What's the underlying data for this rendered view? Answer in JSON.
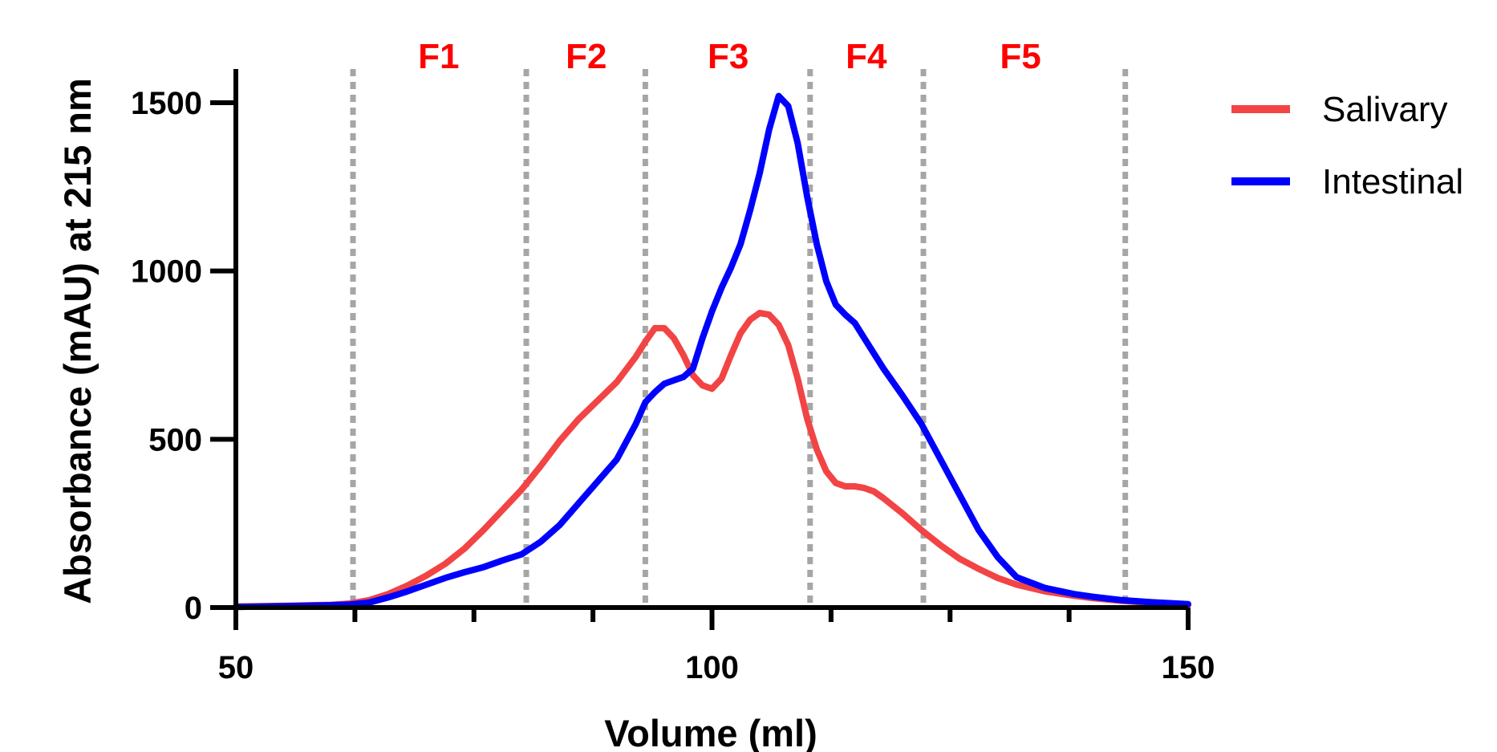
{
  "chart_data": {
    "type": "line",
    "title": "",
    "xlabel": "Volume (ml)",
    "ylabel": "Absorbance (mAU) at 215 nm",
    "xlim": [
      50,
      150
    ],
    "ylim": [
      0,
      1600
    ],
    "x_ticks": [
      50,
      100,
      150
    ],
    "x_tick_labels": [
      "50",
      "100",
      "150"
    ],
    "y_ticks": [
      0,
      500,
      1000,
      1500
    ],
    "y_tick_labels": [
      "0",
      "500",
      "1000",
      "1500"
    ],
    "legend_position": "right",
    "fraction_boundaries": [
      62.3,
      80.5,
      93,
      110.3,
      122.2,
      143.4
    ],
    "fractions": [
      {
        "label": "F1",
        "x": 71.3
      },
      {
        "label": "F2",
        "x": 86.8
      },
      {
        "label": "F3",
        "x": 101.7
      },
      {
        "label": "F4",
        "x": 116.2
      },
      {
        "label": "F5",
        "x": 132.4
      }
    ],
    "fraction_color": "#ff0000",
    "boundary_color": "#a6a6a6",
    "series": [
      {
        "name": "Salivary",
        "color": "#f24444",
        "x": [
          50,
          55,
          60,
          62,
          64,
          66,
          68,
          70,
          72,
          74,
          76,
          78,
          80,
          82,
          84,
          86,
          88,
          90,
          92,
          93,
          94,
          95,
          96,
          97,
          98,
          99,
          100,
          101,
          102,
          103,
          104,
          105,
          106,
          107,
          108,
          109,
          110,
          111,
          112,
          113,
          114,
          115,
          116,
          117,
          118,
          120,
          122,
          124,
          126,
          128,
          130,
          132,
          135,
          138,
          140,
          143,
          146,
          150
        ],
        "y": [
          3,
          5,
          8,
          12,
          22,
          40,
          65,
          95,
          130,
          175,
          230,
          290,
          350,
          420,
          495,
          560,
          615,
          670,
          745,
          790,
          830,
          830,
          800,
          750,
          690,
          660,
          650,
          680,
          750,
          815,
          855,
          875,
          870,
          840,
          780,
          680,
          560,
          470,
          405,
          370,
          360,
          360,
          355,
          345,
          325,
          280,
          230,
          185,
          145,
          115,
          88,
          68,
          48,
          35,
          28,
          20,
          14,
          8
        ]
      },
      {
        "name": "Intestinal",
        "color": "#0000ff",
        "x": [
          50,
          55,
          60,
          62,
          64,
          66,
          68,
          70,
          72,
          74,
          76,
          78,
          80,
          82,
          84,
          86,
          88,
          90,
          92,
          93,
          94,
          95,
          96,
          97,
          98,
          99,
          100,
          101,
          102,
          103,
          104,
          105,
          106,
          107,
          108,
          109,
          110,
          111,
          112,
          113,
          114,
          115,
          116,
          117,
          118,
          120,
          122,
          124,
          126,
          128,
          130,
          132,
          135,
          138,
          140,
          143,
          146,
          150
        ],
        "y": [
          2,
          4,
          7,
          9,
          15,
          30,
          48,
          68,
          88,
          105,
          120,
          140,
          158,
          195,
          245,
          310,
          375,
          440,
          545,
          610,
          640,
          665,
          675,
          685,
          710,
          800,
          880,
          950,
          1010,
          1080,
          1180,
          1290,
          1420,
          1520,
          1490,
          1380,
          1220,
          1080,
          970,
          900,
          870,
          845,
          800,
          755,
          710,
          630,
          545,
          440,
          335,
          230,
          150,
          90,
          58,
          40,
          32,
          22,
          16,
          10
        ]
      }
    ]
  }
}
